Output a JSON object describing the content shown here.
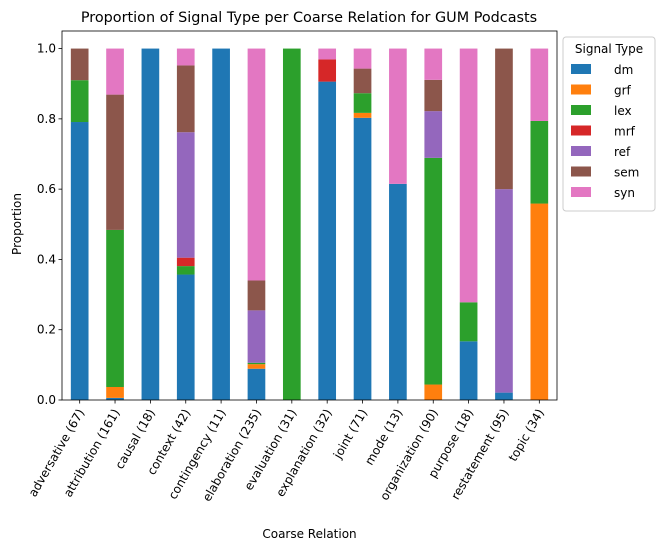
{
  "chart_data": {
    "type": "bar",
    "stacked": true,
    "title": "Proportion of Signal Type per Coarse Relation for GUM Podcasts",
    "xlabel": "Coarse Relation",
    "ylabel": "Proportion",
    "ylim": [
      0,
      1.05
    ],
    "yticks": [
      0.0,
      0.2,
      0.4,
      0.6,
      0.8,
      1.0
    ],
    "ytick_labels": [
      "0.0",
      "0.2",
      "0.4",
      "0.6",
      "0.8",
      "1.0"
    ],
    "grid": false,
    "legend": {
      "title": "Signal Type",
      "placement": "outside-right"
    },
    "categories": [
      "adversative (67)",
      "attribution (161)",
      "causal (18)",
      "context (42)",
      "contingency (11)",
      "elaboration (235)",
      "evaluation (31)",
      "explanation (32)",
      "joint (71)",
      "mode (13)",
      "organization (90)",
      "purpose (18)",
      "restatement (95)",
      "topic (34)"
    ],
    "series": [
      {
        "name": "dm",
        "color": "#1f77b4",
        "values": [
          0.791,
          0.006,
          1.0,
          0.357,
          1.0,
          0.089,
          0.0,
          0.906,
          0.803,
          0.615,
          0.0,
          0.167,
          0.021,
          0.0
        ]
      },
      {
        "name": "grf",
        "color": "#ff7f0e",
        "values": [
          0.0,
          0.031,
          0.0,
          0.0,
          0.0,
          0.013,
          0.0,
          0.0,
          0.014,
          0.0,
          0.044,
          0.0,
          0.0,
          0.559
        ]
      },
      {
        "name": "lex",
        "color": "#2ca02c",
        "values": [
          0.119,
          0.447,
          0.0,
          0.024,
          0.0,
          0.004,
          1.0,
          0.0,
          0.056,
          0.0,
          0.645,
          0.111,
          0.0,
          0.235
        ]
      },
      {
        "name": "mrf",
        "color": "#d62728",
        "values": [
          0.0,
          0.0,
          0.0,
          0.024,
          0.0,
          0.0,
          0.0,
          0.063,
          0.0,
          0.0,
          0.0,
          0.0,
          0.0,
          0.0
        ]
      },
      {
        "name": "ref",
        "color": "#9467bd",
        "values": [
          0.0,
          0.0,
          0.0,
          0.357,
          0.0,
          0.149,
          0.0,
          0.0,
          0.0,
          0.0,
          0.133,
          0.0,
          0.579,
          0.0
        ]
      },
      {
        "name": "sem",
        "color": "#8c564b",
        "values": [
          0.09,
          0.385,
          0.0,
          0.19,
          0.0,
          0.085,
          0.0,
          0.0,
          0.07,
          0.0,
          0.089,
          0.0,
          0.4,
          0.0
        ]
      },
      {
        "name": "syn",
        "color": "#e377c2",
        "values": [
          0.0,
          0.131,
          0.0,
          0.048,
          0.0,
          0.66,
          0.0,
          0.031,
          0.057,
          0.385,
          0.089,
          0.722,
          0.0,
          0.206
        ]
      }
    ]
  }
}
